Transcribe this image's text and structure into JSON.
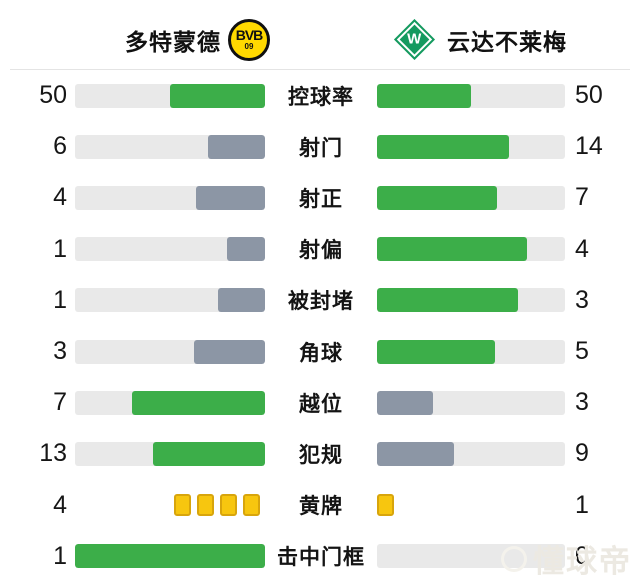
{
  "header": {
    "home": {
      "name": "多特蒙德",
      "logo_text": "BVB",
      "logo_sub": "09"
    },
    "away": {
      "name": "云达不莱梅",
      "logo_letter": "W"
    }
  },
  "colors": {
    "green": "#3cae49",
    "gray": "#8c96a5",
    "track": "#e9e9e9",
    "yellow": "#f7c60f",
    "yellow_border": "#d8a50c",
    "bvb_yellow": "#ffd900",
    "werder_green": "#149a5f",
    "divider": "#e4e4e4"
  },
  "rows": [
    {
      "label": "控球率",
      "left_value": "50",
      "right_value": "50",
      "left_bar": {
        "pct": 50,
        "color": "green"
      },
      "right_bar": {
        "pct": 50,
        "color": "green"
      }
    },
    {
      "label": "射门",
      "left_value": "6",
      "right_value": "14",
      "left_bar": {
        "pct": 30,
        "color": "gray"
      },
      "right_bar": {
        "pct": 70,
        "color": "green"
      }
    },
    {
      "label": "射正",
      "left_value": "4",
      "right_value": "7",
      "left_bar": {
        "pct": 36.4,
        "color": "gray"
      },
      "right_bar": {
        "pct": 63.6,
        "color": "green"
      }
    },
    {
      "label": "射偏",
      "left_value": "1",
      "right_value": "4",
      "left_bar": {
        "pct": 20,
        "color": "gray"
      },
      "right_bar": {
        "pct": 80,
        "color": "green"
      }
    },
    {
      "label": "被封堵",
      "left_value": "1",
      "right_value": "3",
      "left_bar": {
        "pct": 25,
        "color": "gray"
      },
      "right_bar": {
        "pct": 75,
        "color": "green"
      }
    },
    {
      "label": "角球",
      "left_value": "3",
      "right_value": "5",
      "left_bar": {
        "pct": 37.5,
        "color": "gray"
      },
      "right_bar": {
        "pct": 62.5,
        "color": "green"
      }
    },
    {
      "label": "越位",
      "left_value": "7",
      "right_value": "3",
      "left_bar": {
        "pct": 70,
        "color": "green"
      },
      "right_bar": {
        "pct": 30,
        "color": "gray"
      }
    },
    {
      "label": "犯规",
      "left_value": "13",
      "right_value": "9",
      "left_bar": {
        "pct": 59.1,
        "color": "green"
      },
      "right_bar": {
        "pct": 40.9,
        "color": "gray"
      }
    },
    {
      "label": "黄牌",
      "left_value": "4",
      "right_value": "1",
      "left_cards": 4,
      "right_cards": 1
    },
    {
      "label": "击中门框",
      "left_value": "1",
      "right_value": "0",
      "left_bar": {
        "pct": 100,
        "color": "green"
      },
      "right_bar": {
        "pct": 0,
        "color": "none"
      }
    }
  ],
  "watermark": {
    "text": "懂球帝"
  },
  "chart_data": {
    "type": "bar",
    "orientation": "horizontal-mirrored",
    "teams": [
      "多特蒙德",
      "云达不莱梅"
    ],
    "categories": [
      "控球率",
      "射门",
      "射正",
      "射偏",
      "被封堵",
      "角球",
      "越位",
      "犯规",
      "黄牌",
      "击中门框"
    ],
    "series": [
      {
        "name": "多特蒙德",
        "values": [
          50,
          6,
          4,
          1,
          1,
          3,
          7,
          13,
          4,
          1
        ]
      },
      {
        "name": "云达不莱梅",
        "values": [
          50,
          14,
          7,
          4,
          3,
          5,
          3,
          9,
          1,
          0
        ]
      }
    ],
    "value_scale": "bar length = value / (home+away) share of each row",
    "highlight_rule": "higher value drawn green, lower drawn gray, tie both green; yellow cards drawn as card icons",
    "legend_position": "none",
    "grid": false
  }
}
